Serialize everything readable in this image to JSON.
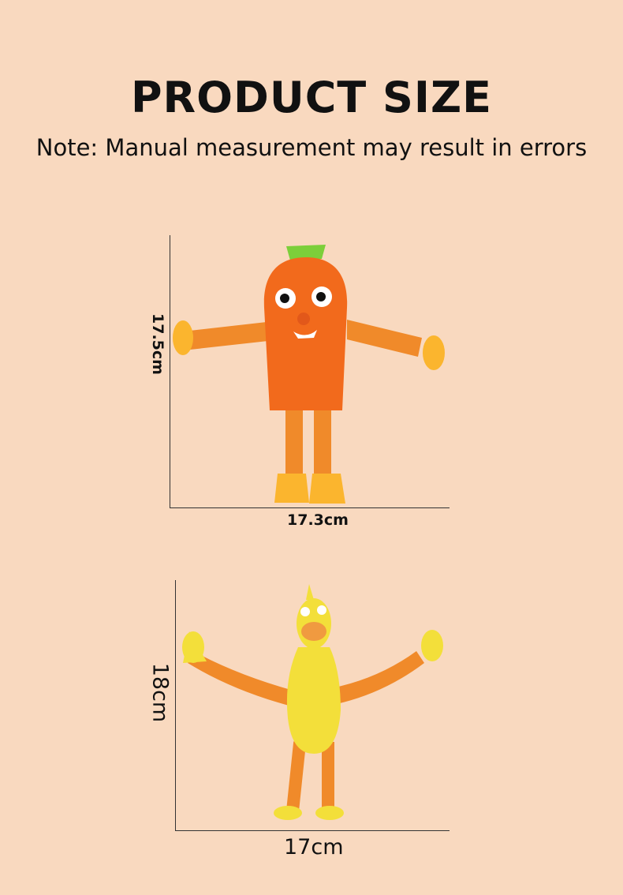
{
  "header": {
    "title": "PRODUCT SIZE",
    "note": "Note: Manual measurement may result in errors"
  },
  "products": [
    {
      "name": "carrot-toy",
      "height_label": "17.5cm",
      "width_label": "17.3cm"
    },
    {
      "name": "chicken-toy",
      "height_label": "18cm",
      "width_label": "17cm"
    }
  ],
  "colors": {
    "background": "#f9d9bf",
    "carrot": "#f26a1c",
    "tube": "#f08a2a",
    "suction": "#fbb52e",
    "chicken": "#f3df3a"
  }
}
